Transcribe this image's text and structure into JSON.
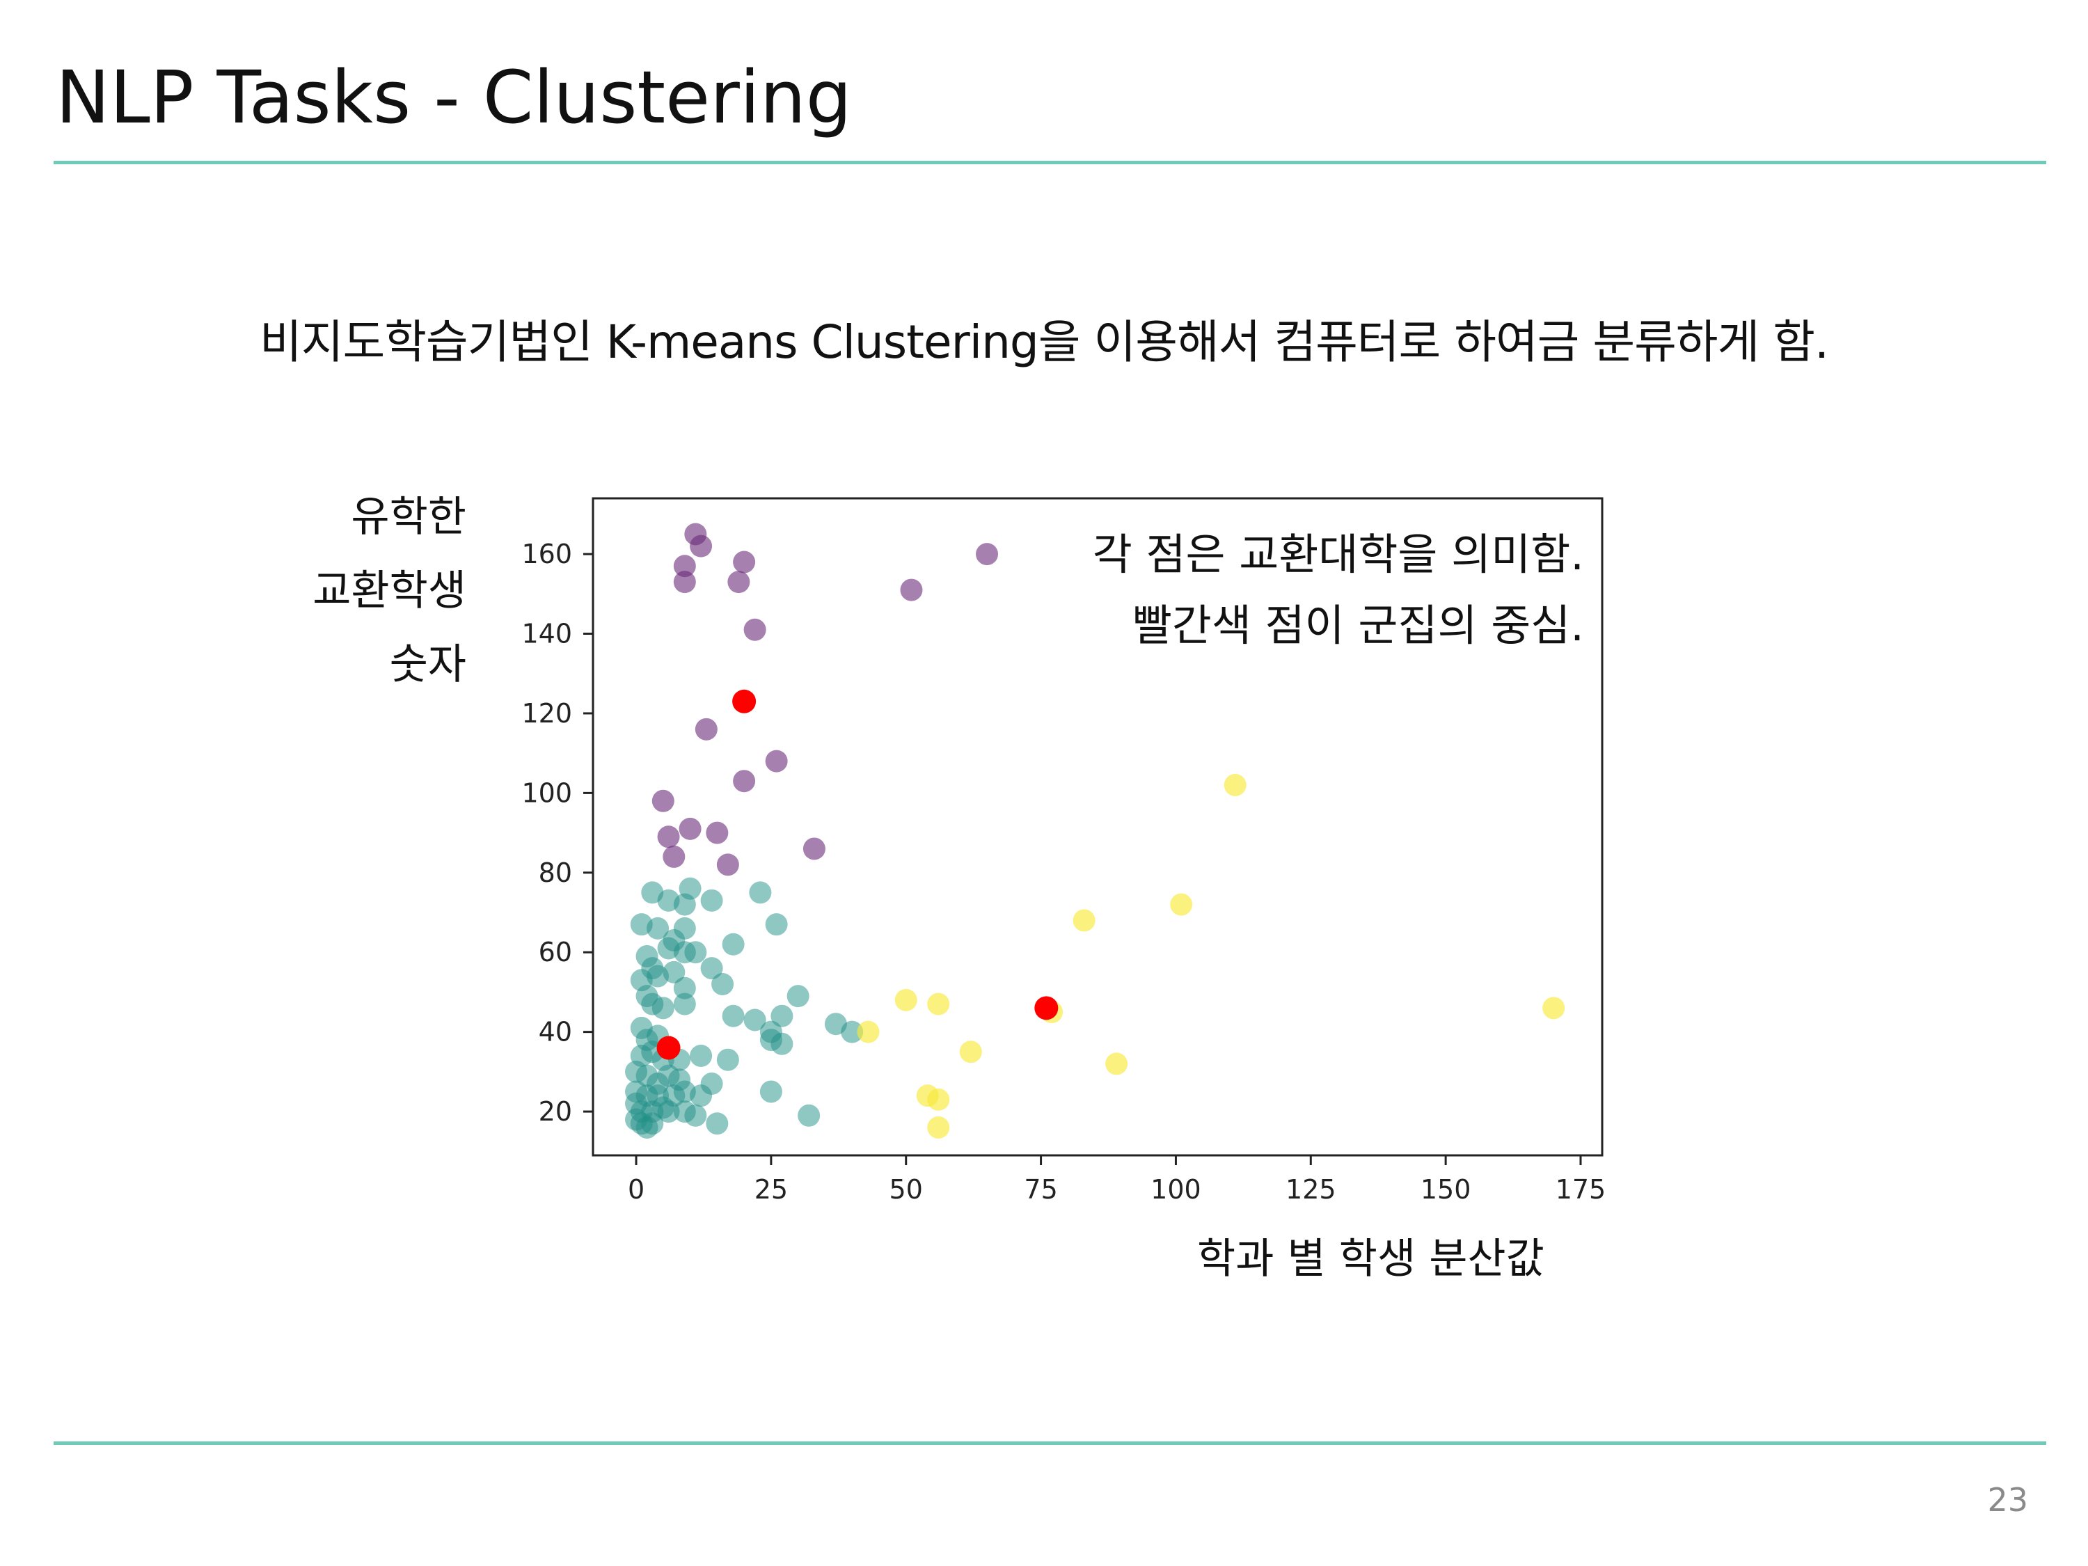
{
  "slide": {
    "title": "NLP Tasks - Clustering",
    "subtitle": "비지도학습기법인 K-means Clustering을 이용해서 컴퓨터로 하여금 분류하게 함.",
    "page_number": "23"
  },
  "colors": {
    "accent_rule": "#6fcab8",
    "cluster_purple": "#6a2c7a",
    "cluster_teal": "#1f8f86",
    "cluster_yellow": "#f7e93a",
    "centroid": "#ff0000"
  },
  "chart_data": {
    "type": "scatter",
    "title": "",
    "xlabel": "학과 별 학생 분산값",
    "ylabel_lines": [
      "유학한",
      "교환학생",
      "숫자"
    ],
    "annotations": [
      "각 점은 교환대학을 의미함.",
      "빨간색 점이 군집의 중심."
    ],
    "xlim": [
      -8,
      179
    ],
    "ylim": [
      9,
      174
    ],
    "xticks": [
      0,
      25,
      50,
      75,
      100,
      125,
      150,
      175
    ],
    "yticks": [
      20,
      40,
      60,
      80,
      100,
      120,
      140,
      160
    ],
    "grid": false,
    "series": [
      {
        "color": "#6a2c7a",
        "opacity": 0.6,
        "points": [
          [
            11,
            165
          ],
          [
            12,
            162
          ],
          [
            9,
            157
          ],
          [
            9,
            153
          ],
          [
            20,
            158
          ],
          [
            19,
            153
          ],
          [
            22,
            141
          ],
          [
            65,
            160
          ],
          [
            51,
            151
          ],
          [
            13,
            116
          ],
          [
            26,
            108
          ],
          [
            20,
            103
          ],
          [
            5,
            98
          ],
          [
            10,
            91
          ],
          [
            15,
            90
          ],
          [
            6,
            89
          ],
          [
            7,
            84
          ],
          [
            17,
            82
          ],
          [
            33,
            86
          ]
        ]
      },
      {
        "color": "#1f8f86",
        "opacity": 0.5,
        "points": [
          [
            3,
            75
          ],
          [
            10,
            76
          ],
          [
            6,
            73
          ],
          [
            9,
            72
          ],
          [
            14,
            73
          ],
          [
            23,
            75
          ],
          [
            26,
            67
          ],
          [
            1,
            67
          ],
          [
            4,
            66
          ],
          [
            9,
            66
          ],
          [
            7,
            63
          ],
          [
            6,
            61
          ],
          [
            9,
            60
          ],
          [
            11,
            60
          ],
          [
            18,
            62
          ],
          [
            2,
            59
          ],
          [
            3,
            56
          ],
          [
            4,
            54
          ],
          [
            1,
            53
          ],
          [
            7,
            55
          ],
          [
            14,
            56
          ],
          [
            9,
            51
          ],
          [
            16,
            52
          ],
          [
            2,
            49
          ],
          [
            3,
            47
          ],
          [
            5,
            46
          ],
          [
            9,
            47
          ],
          [
            30,
            49
          ],
          [
            18,
            44
          ],
          [
            22,
            43
          ],
          [
            27,
            44
          ],
          [
            37,
            42
          ],
          [
            40,
            40
          ],
          [
            25,
            40
          ],
          [
            25,
            38
          ],
          [
            27,
            37
          ],
          [
            1,
            41
          ],
          [
            2,
            38
          ],
          [
            4,
            39
          ],
          [
            1,
            34
          ],
          [
            3,
            35
          ],
          [
            5,
            33
          ],
          [
            8,
            33
          ],
          [
            12,
            34
          ],
          [
            17,
            33
          ],
          [
            0,
            30
          ],
          [
            2,
            29
          ],
          [
            4,
            27
          ],
          [
            6,
            29
          ],
          [
            8,
            28
          ],
          [
            0,
            25
          ],
          [
            2,
            24
          ],
          [
            4,
            24
          ],
          [
            7,
            24
          ],
          [
            9,
            25
          ],
          [
            12,
            24
          ],
          [
            14,
            27
          ],
          [
            25,
            25
          ],
          [
            0,
            22
          ],
          [
            1,
            20
          ],
          [
            3,
            20
          ],
          [
            5,
            21
          ],
          [
            6,
            20
          ],
          [
            9,
            20
          ],
          [
            11,
            19
          ],
          [
            15,
            17
          ],
          [
            32,
            19
          ],
          [
            0,
            18
          ],
          [
            1,
            17
          ],
          [
            2,
            16
          ],
          [
            3,
            17
          ]
        ]
      },
      {
        "color": "#f7e93a",
        "opacity": 0.65,
        "points": [
          [
            111,
            102
          ],
          [
            101,
            72
          ],
          [
            83,
            68
          ],
          [
            50,
            48
          ],
          [
            56,
            47
          ],
          [
            43,
            40
          ],
          [
            62,
            35
          ],
          [
            77,
            45
          ],
          [
            89,
            32
          ],
          [
            170,
            46
          ],
          [
            54,
            24
          ],
          [
            56,
            23
          ],
          [
            56,
            16
          ]
        ]
      }
    ],
    "centroids": [
      [
        20,
        123
      ],
      [
        76,
        46
      ],
      [
        6,
        36
      ]
    ]
  }
}
